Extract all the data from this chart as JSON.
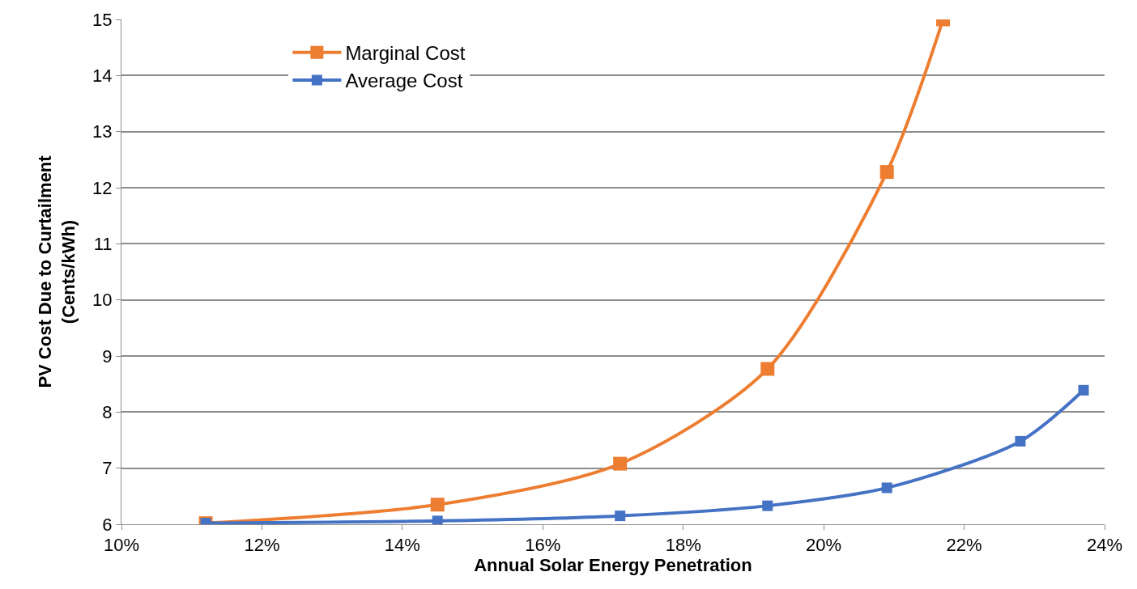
{
  "chart_data": {
    "type": "line",
    "xlabel": "Annual Solar Energy Penetration",
    "ylabel": "PV Cost Due to Curtailment\n(Cents/kWh)",
    "series": [
      {
        "name": "Marginal Cost",
        "color": "#ed7d31",
        "x": [
          11.2,
          14.5,
          17.1,
          19.2,
          20.9,
          21.7
        ],
        "values": [
          6.02,
          6.35,
          7.08,
          8.77,
          12.28,
          15
        ]
      },
      {
        "name": "Average Cost",
        "color": "#4472c4",
        "x": [
          11.2,
          14.5,
          17.1,
          19.2,
          20.9,
          22.8,
          23.7
        ],
        "values": [
          6.02,
          6.06,
          6.15,
          6.33,
          6.65,
          7.48,
          8.39
        ]
      }
    ],
    "xlim": [
      10,
      24
    ],
    "xticks": [
      {
        "value": 10,
        "label": "10%"
      },
      {
        "value": 12,
        "label": "12%"
      },
      {
        "value": 14,
        "label": "14%"
      },
      {
        "value": 16,
        "label": "16%"
      },
      {
        "value": 18,
        "label": "18%"
      },
      {
        "value": 20,
        "label": "20%"
      },
      {
        "value": 22,
        "label": "22%"
      },
      {
        "value": 24,
        "label": "24%"
      }
    ],
    "ylim": [
      6,
      15
    ],
    "yticks": [
      6,
      7,
      8,
      9,
      10,
      11,
      12,
      13,
      14,
      15
    ],
    "grid": "y",
    "legend": "top left",
    "marker": "square",
    "line_style": "solid"
  }
}
